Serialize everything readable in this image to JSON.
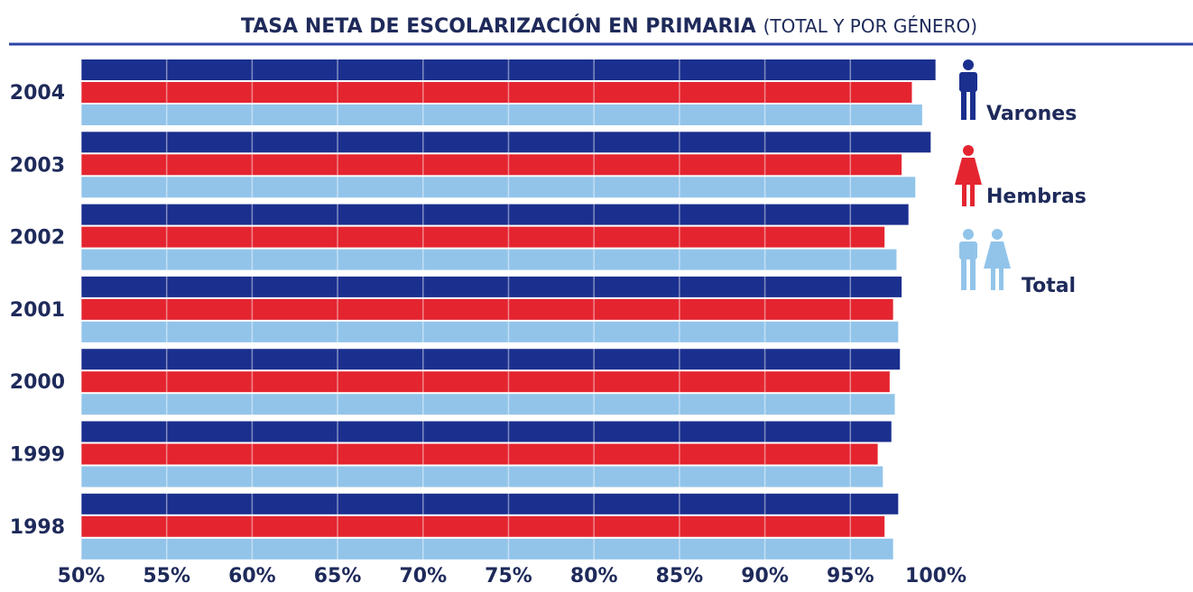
{
  "chart_data": {
    "type": "hbar",
    "title": "TASA NETA DE ESCOLARIZACIÓN EN PRIMARIA",
    "subtitle": "(TOTAL Y POR GÉNERO)",
    "categories": [
      "2004",
      "2003",
      "2002",
      "2001",
      "2000",
      "1999",
      "1998"
    ],
    "series": [
      {
        "name": "Varones",
        "color": "#1b2f8e",
        "values": [
          100.0,
          99.7,
          98.4,
          98.0,
          97.9,
          97.4,
          97.8
        ]
      },
      {
        "name": "Hembras",
        "color": "#e42530",
        "values": [
          98.6,
          98.0,
          97.0,
          97.5,
          97.3,
          96.6,
          97.0
        ]
      },
      {
        "name": "Total",
        "color": "#92c4ea",
        "values": [
          99.2,
          98.8,
          97.7,
          97.8,
          97.6,
          96.9,
          97.5
        ]
      }
    ],
    "xlim": [
      50,
      100
    ],
    "xticks": [
      {
        "value": 50,
        "label": "50%"
      },
      {
        "value": 55,
        "label": "55%"
      },
      {
        "value": 60,
        "label": "60%"
      },
      {
        "value": 65,
        "label": "65%"
      },
      {
        "value": 70,
        "label": "70%"
      },
      {
        "value": 75,
        "label": "75%"
      },
      {
        "value": 80,
        "label": "80%"
      },
      {
        "value": 85,
        "label": "85%"
      },
      {
        "value": 90,
        "label": "90%"
      },
      {
        "value": 95,
        "label": "95%"
      },
      {
        "value": 100,
        "label": "100%"
      }
    ],
    "grid": true
  }
}
